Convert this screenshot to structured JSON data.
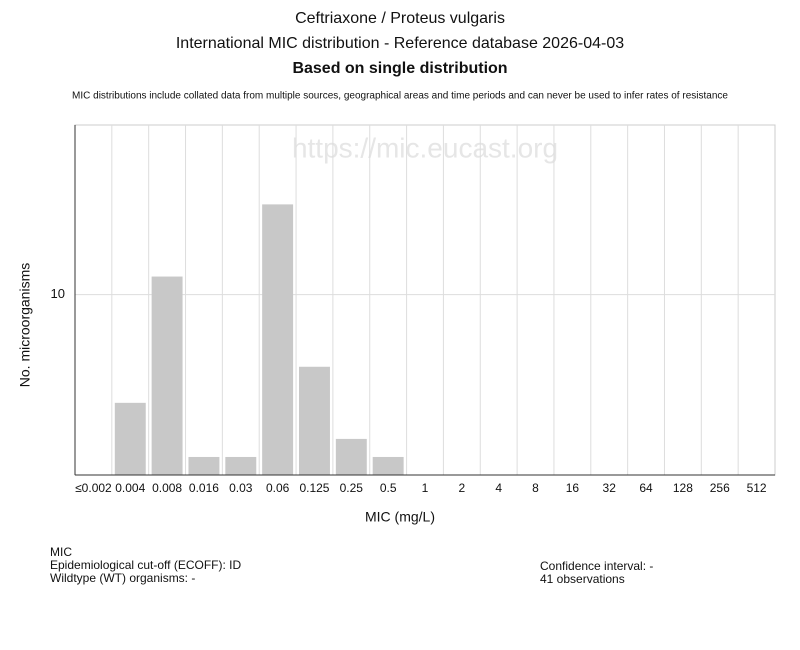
{
  "chart_data": {
    "type": "bar",
    "titles": [
      "Ceftriaxone / Proteus vulgaris",
      "International MIC distribution - Reference database 2026-04-03",
      "Based on single distribution"
    ],
    "note": "MIC distributions include collated data from multiple sources, geographical areas and time periods and can never be used to infer rates of resistance",
    "watermark": "https://mic.eucast.org",
    "x_label": "MIC (mg/L)",
    "y_label": "No. microorganisms",
    "categories": [
      "≤0.002",
      "0.004",
      "0.008",
      "0.016",
      "0.03",
      "0.06",
      "0.125",
      "0.25",
      "0.5",
      "1",
      "2",
      "4",
      "8",
      "16",
      "32",
      "64",
      "128",
      "256",
      "512"
    ],
    "values": [
      0,
      4,
      11,
      1,
      1,
      15,
      6,
      2,
      1,
      0,
      0,
      0,
      0,
      0,
      0,
      0,
      0,
      0,
      0
    ],
    "color": "#c8c8c8",
    "ylim": [
      0,
      19.4
    ],
    "yticks": [
      10
    ],
    "grid": true,
    "footer_left": [
      "MIC",
      "Epidemiological cut-off (ECOFF): ID",
      "Wildtype (WT) organisms:  -"
    ],
    "footer_right": [
      "Confidence interval: -",
      "41 observations"
    ]
  }
}
